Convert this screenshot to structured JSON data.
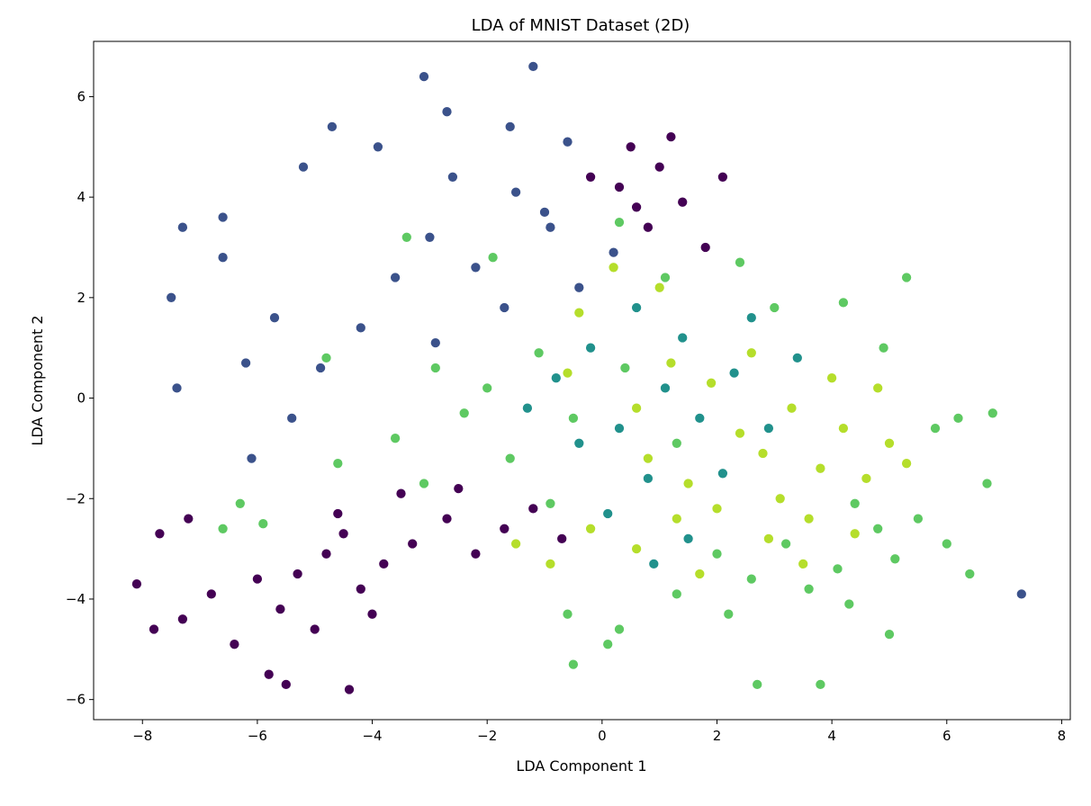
{
  "chart_data": {
    "type": "scatter",
    "title": "LDA of MNIST Dataset (2D)",
    "xlabel": "LDA Component 1",
    "ylabel": "LDA Component 2",
    "xlim": [
      -8.85,
      8.15
    ],
    "ylim": [
      -6.4,
      7.1
    ],
    "xticks": [
      -8,
      -6,
      -4,
      -2,
      0,
      2,
      4,
      6,
      8
    ],
    "yticks": [
      -6,
      -4,
      -2,
      0,
      2,
      4,
      6
    ],
    "xtick_labels": [
      "−8",
      "−6",
      "−4",
      "−2",
      "0",
      "2",
      "4",
      "6",
      "8"
    ],
    "ytick_labels": [
      "−6",
      "−4",
      "−2",
      "0",
      "2",
      "4",
      "6"
    ],
    "grid": false,
    "legend": "none",
    "marker_edge_color": "#ffffff",
    "colormap": "viridis",
    "series": [
      {
        "color": "#440154",
        "points": [
          [
            -5.3,
            -3.5
          ],
          [
            -4.8,
            -3.1
          ],
          [
            -4.2,
            -3.8
          ],
          [
            -5.6,
            -4.2
          ],
          [
            -4.5,
            -2.7
          ],
          [
            -3.8,
            -3.3
          ],
          [
            -5.0,
            -4.6
          ],
          [
            -6.0,
            -3.6
          ],
          [
            -4.0,
            -4.3
          ],
          [
            -3.3,
            -2.9
          ],
          [
            -2.7,
            -2.4
          ],
          [
            -2.2,
            -3.1
          ],
          [
            -1.7,
            -2.6
          ],
          [
            -6.8,
            -3.9
          ],
          [
            -7.3,
            -4.4
          ],
          [
            -6.4,
            -4.9
          ],
          [
            -5.8,
            -5.5
          ],
          [
            -4.4,
            -5.8
          ],
          [
            -5.5,
            -5.7
          ],
          [
            -7.8,
            -4.6
          ],
          [
            -8.1,
            -3.7
          ],
          [
            -7.7,
            -2.7
          ],
          [
            -7.2,
            -2.4
          ],
          [
            -4.6,
            -2.3
          ],
          [
            -3.5,
            -1.9
          ],
          [
            -2.5,
            -1.8
          ],
          [
            -1.2,
            -2.2
          ],
          [
            -0.7,
            -2.8
          ],
          [
            0.5,
            5.0
          ],
          [
            1.0,
            4.6
          ],
          [
            0.3,
            4.2
          ],
          [
            1.4,
            3.9
          ],
          [
            0.8,
            3.4
          ],
          [
            1.8,
            3.0
          ],
          [
            -0.2,
            4.4
          ],
          [
            1.2,
            5.2
          ],
          [
            2.1,
            4.4
          ],
          [
            0.6,
            3.8
          ]
        ]
      },
      {
        "color": "#3b528b",
        "points": [
          [
            -3.0,
            3.2
          ],
          [
            -2.2,
            2.6
          ],
          [
            -1.5,
            4.1
          ],
          [
            -0.9,
            3.4
          ],
          [
            -2.6,
            4.4
          ],
          [
            -3.6,
            2.4
          ],
          [
            -4.2,
            1.4
          ],
          [
            -4.9,
            0.6
          ],
          [
            -1.7,
            1.8
          ],
          [
            -0.4,
            2.2
          ],
          [
            -2.9,
            1.1
          ],
          [
            -5.4,
            -0.4
          ],
          [
            -6.1,
            -1.2
          ],
          [
            -6.6,
            2.8
          ],
          [
            -7.3,
            3.4
          ],
          [
            -7.5,
            2.0
          ],
          [
            -7.4,
            0.2
          ],
          [
            -5.2,
            4.6
          ],
          [
            -4.7,
            5.4
          ],
          [
            -3.1,
            6.4
          ],
          [
            -2.7,
            5.7
          ],
          [
            -1.2,
            6.6
          ],
          [
            -1.6,
            5.4
          ],
          [
            -0.6,
            5.1
          ],
          [
            -3.9,
            5.0
          ],
          [
            -6.6,
            3.6
          ],
          [
            -6.2,
            0.7
          ],
          [
            -5.7,
            1.6
          ],
          [
            -1.0,
            3.7
          ],
          [
            0.2,
            2.9
          ],
          [
            7.3,
            -3.9
          ]
        ]
      },
      {
        "color": "#21918c",
        "points": [
          [
            0.3,
            -0.6
          ],
          [
            1.1,
            0.2
          ],
          [
            0.8,
            -1.6
          ],
          [
            -0.4,
            -0.9
          ],
          [
            1.7,
            -0.4
          ],
          [
            0.1,
            -2.3
          ],
          [
            -0.8,
            0.4
          ],
          [
            1.4,
            1.2
          ],
          [
            2.3,
            0.5
          ],
          [
            0.6,
            1.8
          ],
          [
            -1.3,
            -0.2
          ],
          [
            2.1,
            -1.5
          ],
          [
            2.9,
            -0.6
          ],
          [
            1.5,
            -2.8
          ],
          [
            -0.2,
            1.0
          ],
          [
            0.9,
            -3.3
          ],
          [
            2.6,
            1.6
          ],
          [
            3.4,
            0.8
          ]
        ]
      },
      {
        "color": "#5ec962",
        "points": [
          [
            -3.6,
            -0.8
          ],
          [
            -2.4,
            -0.3
          ],
          [
            -1.6,
            -1.2
          ],
          [
            -2.9,
            0.6
          ],
          [
            -1.1,
            0.9
          ],
          [
            -0.5,
            -0.4
          ],
          [
            0.4,
            0.6
          ],
          [
            1.3,
            -0.9
          ],
          [
            -4.6,
            -1.3
          ],
          [
            -3.1,
            -1.7
          ],
          [
            -0.9,
            -2.1
          ],
          [
            -2.0,
            0.2
          ],
          [
            2.0,
            -3.1
          ],
          [
            3.2,
            -2.9
          ],
          [
            4.1,
            -3.4
          ],
          [
            4.8,
            -2.6
          ],
          [
            3.6,
            -3.8
          ],
          [
            5.1,
            -3.2
          ],
          [
            4.4,
            -2.1
          ],
          [
            2.6,
            -3.6
          ],
          [
            5.5,
            -2.4
          ],
          [
            6.0,
            -2.9
          ],
          [
            6.4,
            -3.5
          ],
          [
            6.7,
            -1.7
          ],
          [
            6.8,
            -0.3
          ],
          [
            6.2,
            -0.4
          ],
          [
            5.3,
            2.4
          ],
          [
            4.9,
            1.0
          ],
          [
            3.8,
            -5.7
          ],
          [
            2.7,
            -5.7
          ],
          [
            0.1,
            -4.9
          ],
          [
            -0.5,
            -5.3
          ],
          [
            1.3,
            -3.9
          ],
          [
            2.2,
            -4.3
          ],
          [
            5.0,
            -4.7
          ],
          [
            4.3,
            -4.1
          ],
          [
            3.0,
            1.8
          ],
          [
            2.4,
            2.7
          ],
          [
            1.1,
            2.4
          ],
          [
            0.3,
            3.5
          ],
          [
            4.2,
            1.9
          ],
          [
            5.8,
            -0.6
          ],
          [
            -3.4,
            3.2
          ],
          [
            -1.9,
            2.8
          ],
          [
            -6.3,
            -2.1
          ],
          [
            -5.9,
            -2.5
          ],
          [
            -6.6,
            -2.6
          ],
          [
            -4.8,
            0.8
          ],
          [
            -0.6,
            -4.3
          ],
          [
            0.3,
            -4.6
          ]
        ]
      },
      {
        "color": "#b5de2b",
        "points": [
          [
            3.3,
            -0.2
          ],
          [
            3.8,
            -1.4
          ],
          [
            4.2,
            -0.6
          ],
          [
            2.8,
            -1.1
          ],
          [
            4.6,
            -1.6
          ],
          [
            3.1,
            -2.0
          ],
          [
            4.0,
            0.4
          ],
          [
            2.4,
            -0.7
          ],
          [
            5.0,
            -0.9
          ],
          [
            3.6,
            -2.4
          ],
          [
            2.0,
            -2.2
          ],
          [
            4.4,
            -2.7
          ],
          [
            1.5,
            -1.7
          ],
          [
            0.8,
            -1.2
          ],
          [
            1.9,
            0.3
          ],
          [
            2.6,
            0.9
          ],
          [
            1.2,
            0.7
          ],
          [
            0.6,
            -0.2
          ],
          [
            -0.2,
            -2.6
          ],
          [
            -0.9,
            -3.3
          ],
          [
            -1.5,
            -2.9
          ],
          [
            1.0,
            2.2
          ],
          [
            0.2,
            2.6
          ],
          [
            -0.4,
            1.7
          ],
          [
            1.7,
            -3.5
          ],
          [
            0.6,
            -3.0
          ],
          [
            3.5,
            -3.3
          ],
          [
            5.3,
            -1.3
          ],
          [
            4.8,
            0.2
          ],
          [
            2.9,
            -2.8
          ],
          [
            1.3,
            -2.4
          ],
          [
            -0.6,
            0.5
          ]
        ]
      }
    ]
  }
}
